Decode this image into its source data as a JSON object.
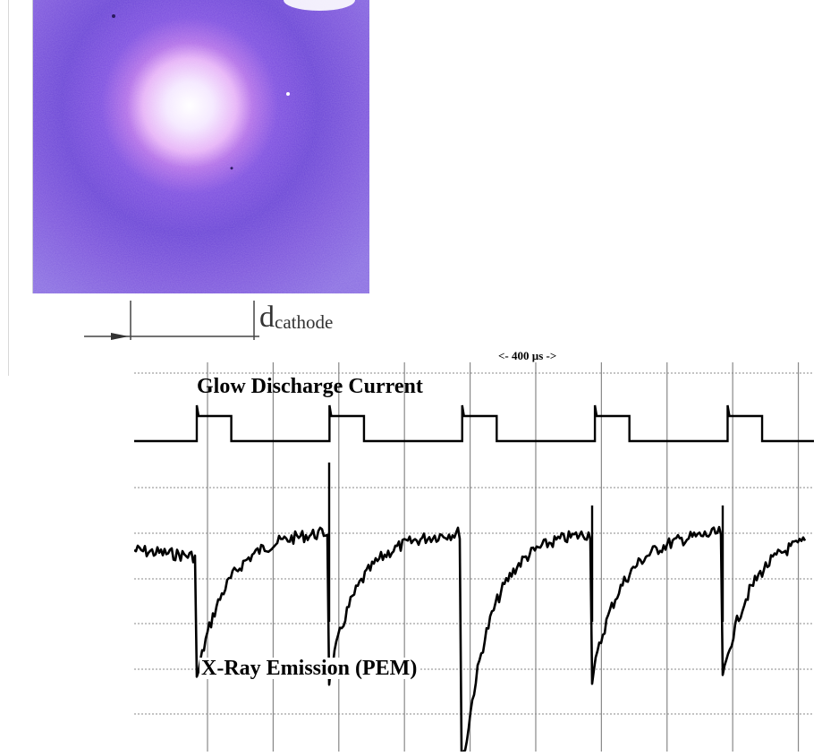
{
  "photo": {
    "scale_label": "d",
    "scale_label_subscript": "cathode"
  },
  "chart_data": {
    "type": "line",
    "title": "",
    "xlabel": "",
    "ylabel": "",
    "time_scale_label": "<- 400 µs ->",
    "grid": true,
    "series": [
      {
        "name": "Glow Discharge Current",
        "pulse_starts_us": [
          260,
          760,
          1260,
          1760,
          2260
        ],
        "pulse_width_us": 130
      },
      {
        "name": "X-Ray Emission (PEM)",
        "drops_us": [
          240,
          740,
          1240,
          1740,
          2240
        ]
      }
    ]
  },
  "colors": {
    "photo_bg": "#5a3fd0",
    "glow_core": "#ffffff",
    "trace": "#000000",
    "grid": "#888888"
  }
}
